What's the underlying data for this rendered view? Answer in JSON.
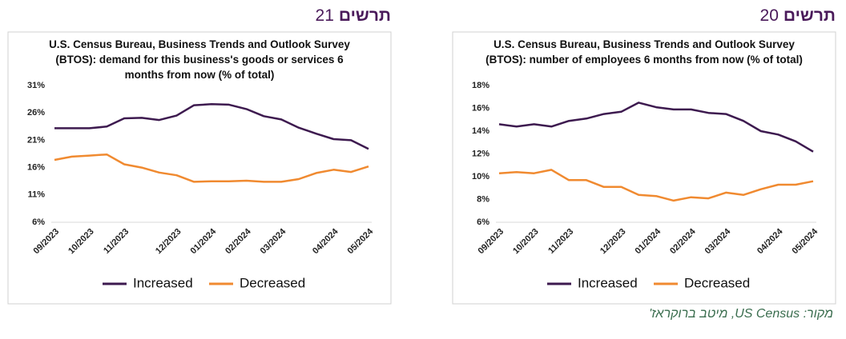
{
  "chart_data": [
    {
      "type": "line",
      "heading": "תרשים",
      "number": "21",
      "title": "U.S. Census Bureau, Business Trends and Outlook Survey (BTOS):  demand for this business's goods or services 6 months from now (% of total)",
      "categories": [
        "09/2023",
        null,
        "10/2023",
        null,
        "11/2023",
        null,
        null,
        "12/2023",
        null,
        "01/2024",
        null,
        "02/2024",
        null,
        "03/2024",
        null,
        null,
        "04/2024",
        null,
        "05/2024"
      ],
      "series": [
        {
          "name": "Increased",
          "color": "#3d1a4f",
          "values": [
            23.2,
            23.2,
            23.2,
            23.5,
            25.0,
            25.1,
            24.7,
            25.5,
            27.4,
            27.6,
            27.5,
            26.7,
            25.4,
            24.8,
            23.3,
            22.2,
            21.2,
            21.0,
            19.4
          ]
        },
        {
          "name": "Decreased",
          "color": "#f08a30",
          "values": [
            17.4,
            18.0,
            18.2,
            18.4,
            16.6,
            16.0,
            15.1,
            14.6,
            13.4,
            13.5,
            13.5,
            13.6,
            13.4,
            13.4,
            13.9,
            15.0,
            15.6,
            15.2,
            16.2
          ]
        }
      ],
      "ylim": [
        6,
        31
      ],
      "yticks": [
        {
          "value": 6,
          "label": "6%"
        },
        {
          "value": 11,
          "label": "11%"
        },
        {
          "value": 16,
          "label": "16%"
        },
        {
          "value": 21,
          "label": "21%"
        },
        {
          "value": 26,
          "label": "26%"
        },
        {
          "value": 31,
          "label": "31%"
        }
      ],
      "legend": "bottom"
    },
    {
      "type": "line",
      "heading": "תרשים",
      "number": "20",
      "title": "U.S. Census Bureau, Business Trends and Outlook Survey (BTOS):  number of employees 6 months from now (% of total)",
      "categories": [
        "09/2023",
        null,
        "10/2023",
        null,
        "11/2023",
        null,
        null,
        "12/2023",
        null,
        "01/2024",
        null,
        "02/2024",
        null,
        "03/2024",
        null,
        null,
        "04/2024",
        null,
        "05/2024"
      ],
      "series": [
        {
          "name": "Increased",
          "color": "#3d1a4f",
          "values": [
            14.6,
            14.4,
            14.6,
            14.4,
            14.9,
            15.1,
            15.5,
            15.7,
            16.5,
            16.1,
            15.9,
            15.9,
            15.6,
            15.5,
            14.9,
            14.0,
            13.7,
            13.1,
            12.2
          ]
        },
        {
          "name": "Decreased",
          "color": "#f08a30",
          "values": [
            10.3,
            10.4,
            10.3,
            10.6,
            9.7,
            9.7,
            9.1,
            9.1,
            8.4,
            8.3,
            7.9,
            8.2,
            8.1,
            8.6,
            8.4,
            8.9,
            9.3,
            9.3,
            9.6
          ]
        }
      ],
      "ylim": [
        6,
        18
      ],
      "yticks": [
        {
          "value": 6,
          "label": "6%"
        },
        {
          "value": 8,
          "label": "8%"
        },
        {
          "value": 10,
          "label": "10%"
        },
        {
          "value": 12,
          "label": "12%"
        },
        {
          "value": 14,
          "label": "14%"
        },
        {
          "value": 16,
          "label": "16%"
        },
        {
          "value": 18,
          "label": "18%"
        }
      ],
      "legend": "bottom"
    }
  ],
  "source": "מקור: US Census, מיטב ברוקראז'"
}
